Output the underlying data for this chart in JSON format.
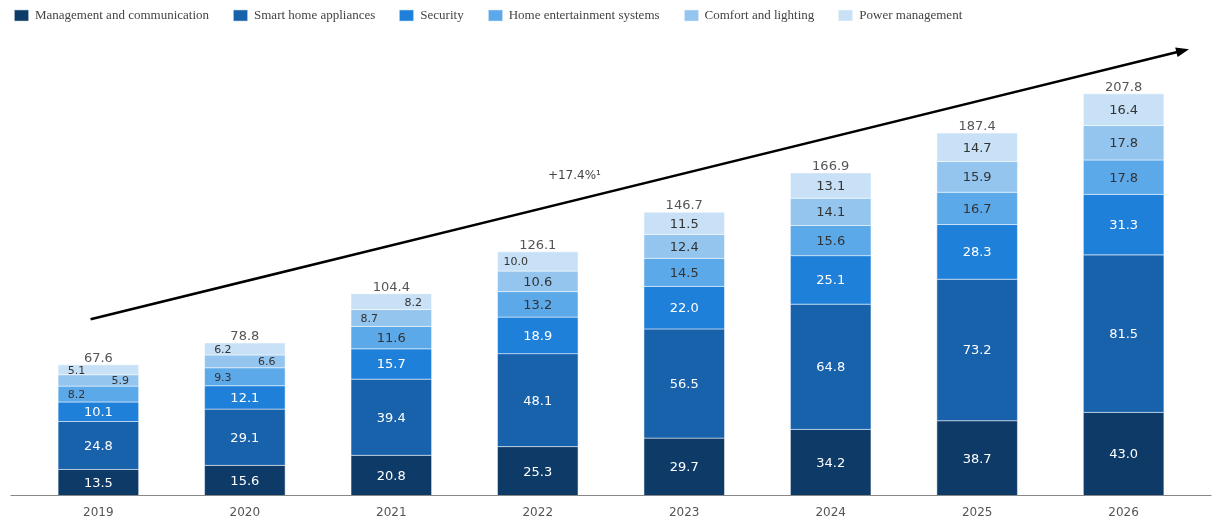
{
  "chart_data": {
    "type": "bar",
    "stacked": true,
    "legend": "top",
    "grid": false,
    "categories": [
      "2019",
      "2020",
      "2021",
      "2022",
      "2023",
      "2024",
      "2025",
      "2026"
    ],
    "series": [
      {
        "name": "Management and communication",
        "color": "#0e3a68",
        "values": [
          13.5,
          15.6,
          20.8,
          25.3,
          29.7,
          34.2,
          38.7,
          43.0
        ],
        "value_labels": [
          "13.5",
          "15.6",
          "20.8",
          "25.3",
          "29.7",
          "34.2",
          "38.7",
          "43.0"
        ]
      },
      {
        "name": "Smart home appliances",
        "color": "#1861ab",
        "values": [
          24.8,
          29.1,
          39.4,
          48.1,
          56.5,
          64.8,
          73.2,
          81.5
        ],
        "value_labels": [
          "24.8",
          "29.1",
          "39.4",
          "48.1",
          "56.5",
          "64.8",
          "73.2",
          "81.5"
        ]
      },
      {
        "name": "Security",
        "color": "#1f80da",
        "values": [
          10.1,
          12.1,
          15.7,
          18.9,
          22.0,
          25.1,
          28.3,
          31.3
        ],
        "value_labels": [
          "10.1",
          "12.1",
          "15.7",
          "18.9",
          "22.0",
          "25.1",
          "28.3",
          "31.3"
        ]
      },
      {
        "name": "Home entertainment systems",
        "color": "#5ca9ea",
        "values": [
          8.2,
          9.3,
          11.6,
          13.2,
          14.5,
          15.6,
          16.7,
          17.8
        ],
        "value_labels": [
          "8.2",
          "9.3",
          "11.6",
          "13.2",
          "14.5",
          "15.6",
          "16.7",
          "17.8"
        ]
      },
      {
        "name": "Comfort and lighting",
        "color": "#93c5ef",
        "values": [
          5.9,
          6.6,
          8.7,
          10.6,
          12.4,
          14.1,
          15.9,
          17.8
        ],
        "value_labels": [
          "5.9",
          "6.6",
          "8.7",
          "10.6",
          "12.4",
          "14.1",
          "15.9",
          "17.8"
        ]
      },
      {
        "name": "Power management",
        "color": "#c8e1f7",
        "values": [
          5.1,
          6.2,
          8.2,
          10.0,
          11.5,
          13.1,
          14.7,
          16.4
        ],
        "value_labels": [
          "5.1",
          "6.2",
          "8.2",
          "10.0",
          "11.5",
          "13.1",
          "14.7",
          "16.4"
        ]
      }
    ],
    "totals": [
      "67.6",
      "78.8",
      "104.4",
      "126.1",
      "146.7",
      "166.9",
      "187.4",
      "207.8"
    ],
    "annotations": [
      "+17.4%¹"
    ]
  }
}
